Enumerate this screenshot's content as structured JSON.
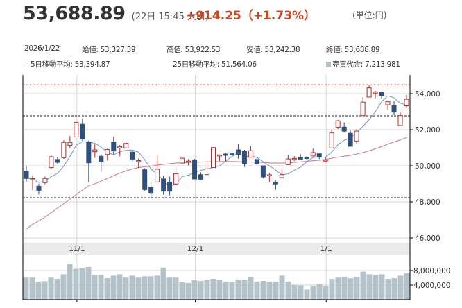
{
  "header": {
    "price": "53,688.89",
    "timestamp": "(22日 15:45 大引)",
    "change": "+914.25（+1.73%）",
    "unit": "(単位:円)"
  },
  "info": {
    "date": "2026/1/22",
    "open": "始値: 53,327.39",
    "high": "高値: 53,922.53",
    "low": "安値: 53,242.38",
    "close": "終値: 53,688.89",
    "ma5": "5日移動平均: 53,394.87",
    "ma25": "25日移動平均: 51,564.06",
    "turnover": "売買代金: 7,213,981"
  },
  "colors": {
    "up": "#b02a2a",
    "down": "#2f4f7c",
    "ma5": "#7f9cc4",
    "ma25": "#c98593",
    "volume": "#b4c2ca",
    "ref_high": "#a03030",
    "ref_line": "#222222",
    "header_change": "#d0451b"
  },
  "chart_data": {
    "type": "candlestick",
    "price_axis": {
      "range": [
        45500,
        55000
      ],
      "ticks": [
        54000,
        52000,
        50000,
        48000,
        46000
      ],
      "tick_labels": [
        "54,000",
        "52,000",
        "50,000",
        "48,000",
        "46,000"
      ],
      "position": "right"
    },
    "volume_axis": {
      "range": [
        0,
        10000000
      ],
      "ticks": [
        8000000,
        4000000
      ],
      "tick_labels": [
        "8,000,000",
        "4,000,000"
      ],
      "position": "right"
    },
    "x_labels": [
      {
        "label": "11/1",
        "index": 8
      },
      {
        "label": "12/1",
        "index": 27
      },
      {
        "label": "1/1",
        "index": 48
      }
    ],
    "grid": true,
    "reference_lines": [
      {
        "value": 54490,
        "style": "dashed",
        "color": "red"
      },
      {
        "value": 52770,
        "style": "dashed",
        "color": "black"
      },
      {
        "value": 48230,
        "style": "dashed",
        "color": "black"
      }
    ],
    "ohlc": [
      [
        49704,
        49960,
        49126,
        49296
      ],
      [
        49260,
        49450,
        48650,
        49290
      ],
      [
        48870,
        49000,
        48400,
        48640
      ],
      [
        49070,
        49410,
        48970,
        49300
      ],
      [
        49900,
        50560,
        49840,
        50500
      ],
      [
        50350,
        50500,
        50115,
        50190
      ],
      [
        50450,
        51420,
        50385,
        51300
      ],
      [
        51140,
        51650,
        50960,
        51300
      ],
      [
        51600,
        52410,
        51600,
        52410
      ],
      [
        52300,
        52615,
        51370,
        51475
      ],
      [
        51310,
        51400,
        49090,
        50165
      ],
      [
        50780,
        51190,
        50440,
        50885
      ],
      [
        50530,
        50640,
        49665,
        50245
      ],
      [
        50625,
        50950,
        50300,
        50900
      ],
      [
        51310,
        51600,
        50600,
        50820
      ],
      [
        50990,
        51150,
        50530,
        51065
      ],
      [
        50990,
        51350,
        50990,
        51240
      ],
      [
        50760,
        50870,
        50220,
        50370
      ],
      [
        50270,
        50410,
        49870,
        50290
      ],
      [
        49780,
        49870,
        48600,
        48680
      ],
      [
        48810,
        49065,
        48230,
        48510
      ],
      [
        49100,
        50580,
        49100,
        49810
      ],
      [
        49270,
        49460,
        48400,
        48590
      ],
      [
        49100,
        49400,
        48360,
        48590
      ],
      [
        48990,
        49870,
        48990,
        49560
      ],
      [
        50150,
        50530,
        50150,
        50420
      ],
      [
        50250,
        50370,
        50025,
        50260
      ],
      [
        50320,
        50380,
        49270,
        49270
      ],
      [
        49510,
        49640,
        49255,
        49255
      ],
      [
        49510,
        50150,
        49510,
        49835
      ],
      [
        49900,
        51010,
        49900,
        51010
      ],
      [
        50570,
        50625,
        50280,
        50600
      ],
      [
        50650,
        50705,
        50245,
        50580
      ],
      [
        50665,
        50820,
        50430,
        50600
      ],
      [
        50885,
        51190,
        50400,
        50640
      ],
      [
        50795,
        50885,
        49935,
        50115
      ],
      [
        50475,
        51090,
        50475,
        50835
      ],
      [
        50345,
        50535,
        49960,
        50130
      ],
      [
        50000,
        50000,
        49310,
        49385
      ],
      [
        49470,
        49580,
        49090,
        49500
      ],
      [
        49090,
        49190,
        48680,
        48990
      ],
      [
        49345,
        49860,
        49290,
        49510
      ],
      [
        50065,
        50600,
        50065,
        50380
      ],
      [
        50390,
        50540,
        50280,
        50410
      ],
      [
        50450,
        50630,
        50345,
        50370
      ],
      [
        50460,
        50540,
        50345,
        50430
      ],
      [
        50540,
        50950,
        50540,
        50730
      ],
      [
        50665,
        50665,
        50370,
        50510
      ],
      [
        50310,
        50475,
        50220,
        50320
      ],
      [
        50990,
        52010,
        50990,
        51820
      ],
      [
        52140,
        52540,
        52040,
        52490
      ],
      [
        52140,
        52400,
        51850,
        51920
      ],
      [
        51800,
        51950,
        51080,
        51080
      ],
      [
        51370,
        52010,
        51200,
        51920
      ],
      [
        52780,
        53810,
        52780,
        53530
      ],
      [
        53810,
        54490,
        53810,
        54320
      ],
      [
        54030,
        54150,
        53740,
        54100
      ],
      [
        54060,
        54100,
        53720,
        53900
      ],
      [
        53385,
        53550,
        53100,
        53550
      ],
      [
        53330,
        53600,
        52810,
        52975
      ],
      [
        52230,
        52970,
        52230,
        52780
      ],
      [
        53327.39,
        53922.53,
        53242.38,
        53688.89
      ]
    ],
    "ma25": [
      46500,
      46750,
      46950,
      47150,
      47400,
      47650,
      47900,
      48150,
      48400,
      48650,
      48900,
      49000,
      49150,
      49300,
      49450,
      49600,
      49720,
      49820,
      49900,
      49950,
      49980,
      50040,
      50080,
      50120,
      50150,
      50170,
      50190,
      50200,
      50210,
      50220,
      50230,
      50240,
      50240,
      50240,
      50230,
      50220,
      50210,
      50200,
      50180,
      50160,
      50150,
      50150,
      50160,
      50190,
      50220,
      50250,
      50280,
      50310,
      50350,
      50420,
      50480,
      50530,
      50580,
      50650,
      50730,
      50830,
      50940,
      51060,
      51200,
      51320,
      51440,
      51564.06
    ],
    "volume": [
      6060000,
      6060000,
      4970000,
      5090000,
      6060000,
      5700000,
      6970000,
      9880000,
      8480000,
      8600000,
      8970000,
      6790000,
      6790000,
      5880000,
      6600000,
      6970000,
      6060000,
      6600000,
      6060000,
      6420000,
      6420000,
      6600000,
      8790000,
      6060000,
      6060000,
      4790000,
      4600000,
      5330000,
      5150000,
      5330000,
      5700000,
      5330000,
      4970000,
      4790000,
      5500000,
      5330000,
      6240000,
      4970000,
      5150000,
      4970000,
      4970000,
      6600000,
      4970000,
      4060000,
      3880000,
      2790000,
      3700000,
      4240000,
      3700000,
      5700000,
      6060000,
      6240000,
      5880000,
      6240000,
      7700000,
      6970000,
      6790000,
      6970000,
      5700000,
      5880000,
      6600000,
      7213981
    ]
  }
}
